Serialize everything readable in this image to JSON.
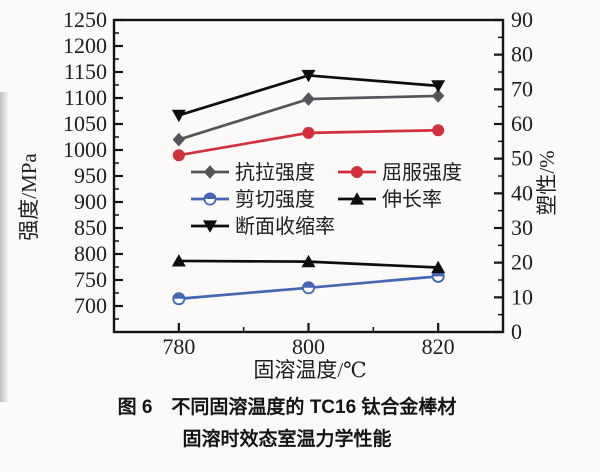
{
  "figure": {
    "caption_line1": "图 6　不同固溶温度的 TC16 钛合金棒材",
    "caption_line2": "固溶时效态室温力学性能"
  },
  "chart_data": {
    "type": "line",
    "x": [
      780,
      800,
      820
    ],
    "x_axis": {
      "label": "固溶温度/℃",
      "range": [
        770,
        830
      ],
      "major_ticks": [
        780,
        800,
        820
      ],
      "minor_ticks": [
        790,
        810
      ]
    },
    "left_y_axis": {
      "label": "强度/MPa",
      "range": [
        650,
        1250
      ],
      "tick_start": 700,
      "tick_end": 1250,
      "major_tick_step": 50,
      "minor_tick_step": 25
    },
    "right_y_axis": {
      "label": "塑性/%",
      "range": [
        0,
        90
      ],
      "tick_start": 0,
      "tick_end": 90,
      "major_tick_step": 10,
      "minor_tick_step": 5
    },
    "grid": false,
    "legend_position": "inside-center-left",
    "legend_rows": [
      [
        0,
        1
      ],
      [
        2,
        3
      ],
      [
        4
      ]
    ],
    "series": [
      {
        "name": "抗拉强度",
        "axis": "left",
        "marker": "diamond",
        "color": "#54545a",
        "values": [
          1020,
          1098,
          1104
        ]
      },
      {
        "name": "屈服强度",
        "axis": "left",
        "marker": "circle",
        "color": "#d22f3d",
        "values": [
          990,
          1033,
          1038
        ]
      },
      {
        "name": "剪切强度",
        "axis": "left",
        "marker": "half-circle",
        "color": "#4466b5",
        "values": [
          714,
          735,
          757
        ]
      },
      {
        "name": "伸长率",
        "axis": "right",
        "marker": "triangle-up",
        "color": "#0e0e10",
        "values": [
          20.5,
          20.3,
          18.6
        ]
      },
      {
        "name": "断面收缩率",
        "axis": "right",
        "marker": "triangle-down",
        "color": "#0e0e10",
        "values": [
          62.5,
          74,
          71
        ]
      }
    ],
    "axis_color": "#141414"
  }
}
